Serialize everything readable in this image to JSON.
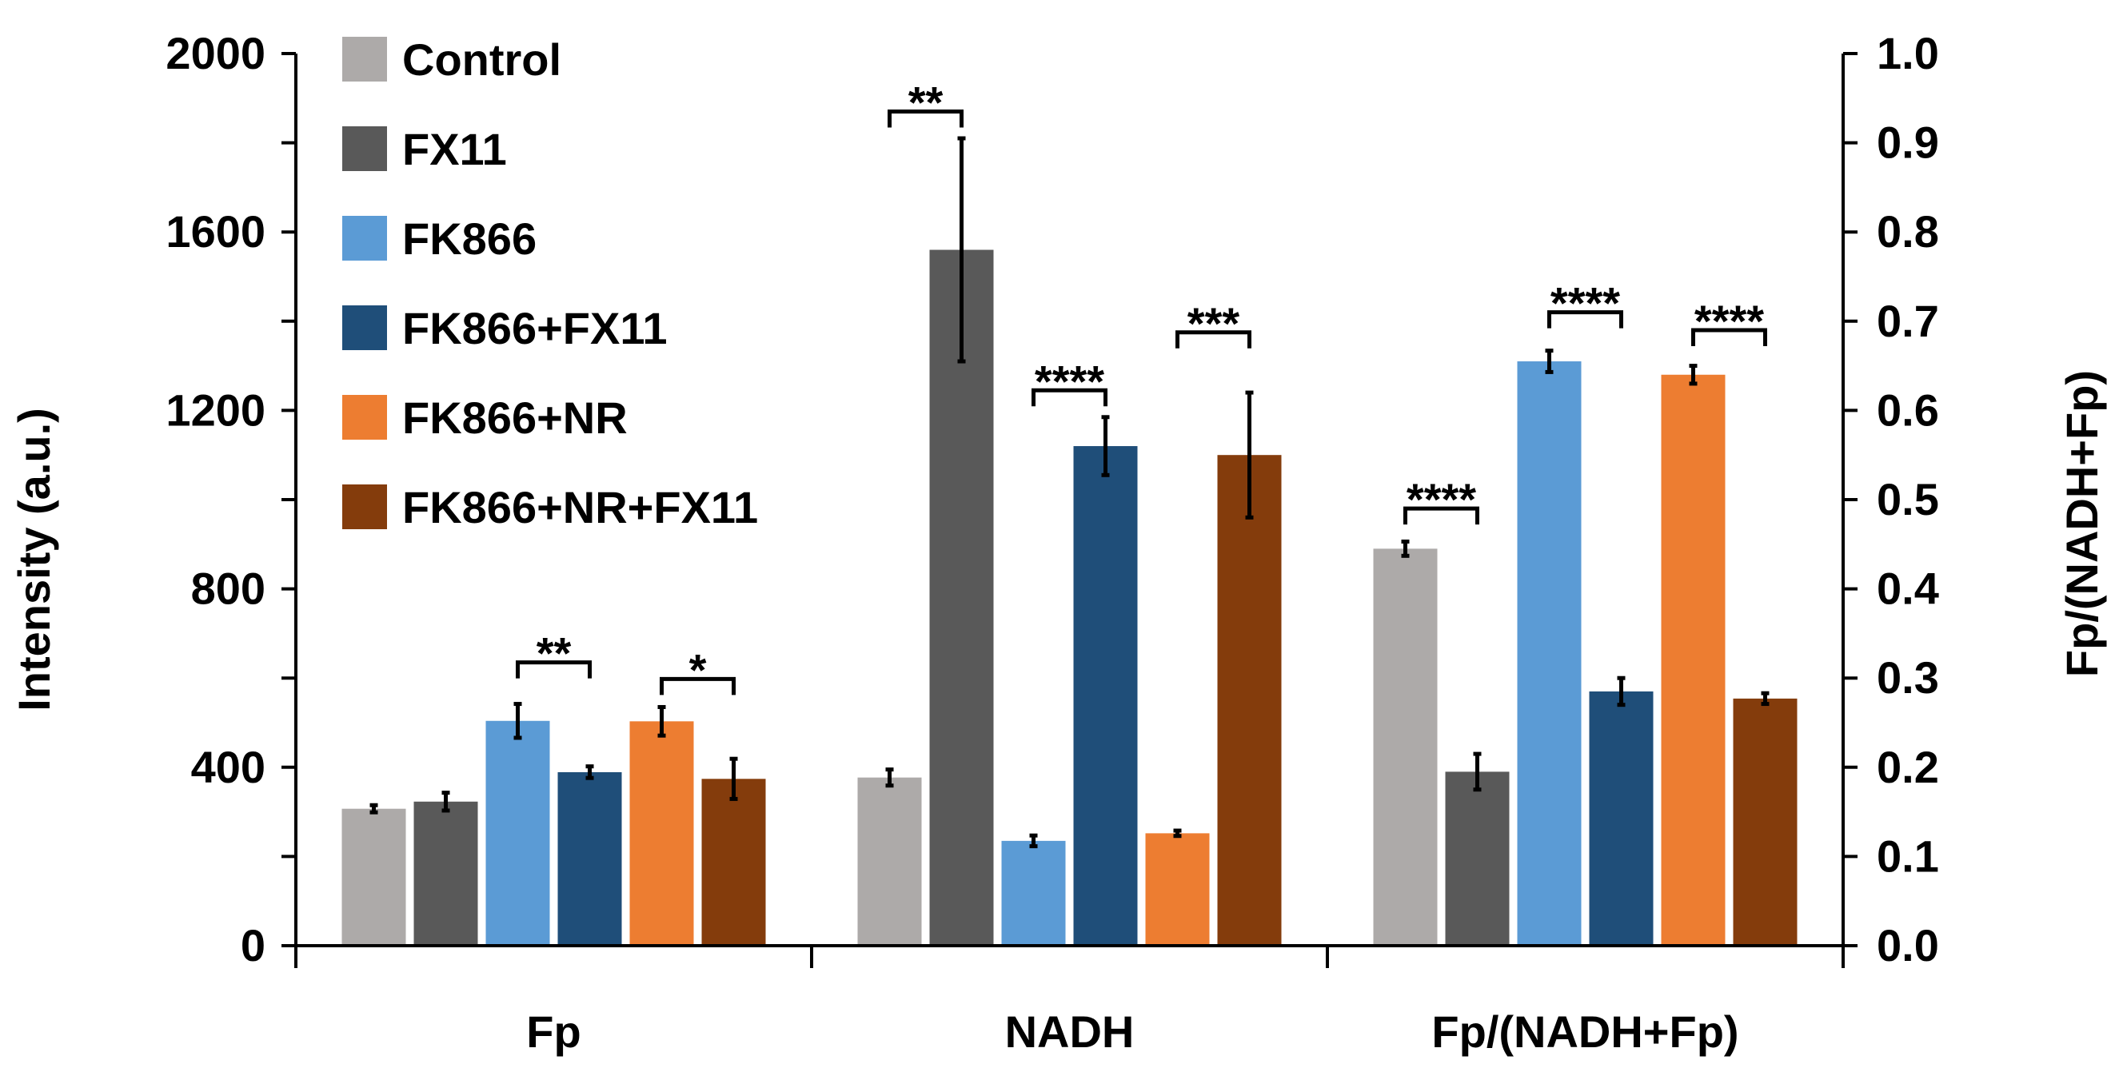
{
  "chart_data": {
    "type": "bar",
    "categories": [
      "Fp",
      "NADH",
      "Fp/(NADH+Fp)"
    ],
    "series": [
      {
        "name": "Control",
        "color": "#ADAAA9",
        "values": [
          307,
          377,
          0.445
        ],
        "errors": [
          8,
          18,
          0.008
        ]
      },
      {
        "name": "FX11",
        "color": "#595959",
        "values": [
          323,
          1560,
          0.195
        ],
        "errors": [
          20,
          250,
          0.02
        ]
      },
      {
        "name": "FK866",
        "color": "#5B9BD5",
        "values": [
          504,
          235,
          0.655
        ],
        "errors": [
          38,
          12,
          0.012
        ]
      },
      {
        "name": "FK866+FX11",
        "color": "#1F4E79",
        "values": [
          389,
          1120,
          0.285
        ],
        "errors": [
          13,
          65,
          0.015
        ]
      },
      {
        "name": "FK866+NR",
        "color": "#ED7D31",
        "values": [
          503,
          252,
          0.64
        ],
        "errors": [
          32,
          6,
          0.01
        ]
      },
      {
        "name": "FK866+NR+FX11",
        "color": "#843C0C",
        "values": [
          374,
          1100,
          0.277
        ],
        "errors": [
          45,
          140,
          0.006
        ]
      }
    ],
    "axis_assignment": [
      "left",
      "left",
      "right"
    ],
    "y_left": {
      "label": "Intensity (a.u.)",
      "min": 0,
      "max": 2000,
      "ticks": [
        "0",
        "400",
        "800",
        "1200",
        "1600",
        "2000"
      ]
    },
    "y_right": {
      "label": "Fp/(NADH+Fp)",
      "min": 0,
      "max": 1.0,
      "ticks": [
        "0.0",
        "0.1",
        "0.2",
        "0.3",
        "0.4",
        "0.5",
        "0.6",
        "0.7",
        "0.8",
        "0.9",
        "1.0"
      ]
    },
    "significance": [
      {
        "group": 0,
        "from": 2,
        "to": 3,
        "label": "**",
        "y": 635
      },
      {
        "group": 0,
        "from": 4,
        "to": 5,
        "label": "*",
        "y": 598
      },
      {
        "group": 1,
        "from": 0,
        "to": 1,
        "label": "**",
        "y": 1870
      },
      {
        "group": 1,
        "from": 2,
        "to": 3,
        "label": "****",
        "y": 1245
      },
      {
        "group": 1,
        "from": 4,
        "to": 5,
        "label": "***",
        "y": 1375
      },
      {
        "group": 2,
        "from": 0,
        "to": 1,
        "label": "****",
        "y": 0.49
      },
      {
        "group": 2,
        "from": 2,
        "to": 3,
        "label": "****",
        "y": 0.71
      },
      {
        "group": 2,
        "from": 4,
        "to": 5,
        "label": "****",
        "y": 0.69
      }
    ],
    "legend_position": "top-left"
  }
}
